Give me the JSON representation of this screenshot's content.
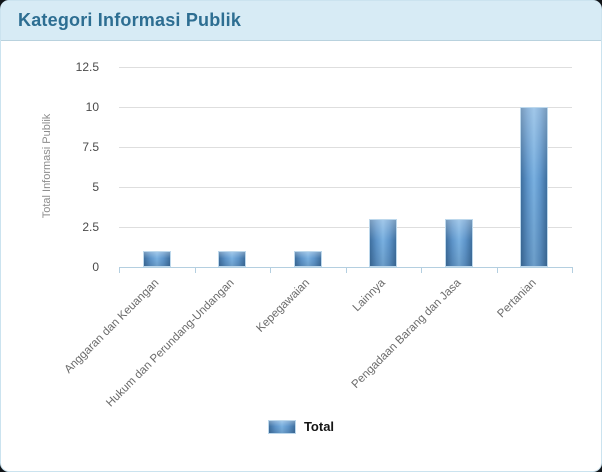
{
  "header": {
    "title": "Kategori Informasi Publik"
  },
  "chart_data": {
    "type": "bar",
    "title": "Kategori Informasi Publik",
    "categories": [
      "Anggaran dan Keuangan",
      "Hukum dan Perundang-Undangan",
      "Kepegawaian",
      "Lainnya",
      "Pengadaan Barang dan Jasa",
      "Pertanian"
    ],
    "series": [
      {
        "name": "Total",
        "values": [
          1,
          1,
          1,
          3,
          3,
          10
        ]
      }
    ],
    "xlabel": "",
    "ylabel": "Total Informasi Publik",
    "ylim": [
      0,
      12.5
    ],
    "yticks": [
      0,
      2.5,
      5,
      7.5,
      10,
      12.5
    ],
    "grid": "horizontal",
    "legend_position": "bottom"
  },
  "colors": {
    "header_bg": "#d7ebf5",
    "title": "#2d6e92",
    "bar_edge": "#3e6f9f",
    "bar_mid": "#79b0e0",
    "bar_border": "#bdd8ec",
    "gridline": "#dedede",
    "axis": "#b4cfe0",
    "tick_label": "#4a4a4a",
    "category_label": "#6b6b6b",
    "y_title": "#8c8c8c",
    "legend_text": "#141414"
  }
}
